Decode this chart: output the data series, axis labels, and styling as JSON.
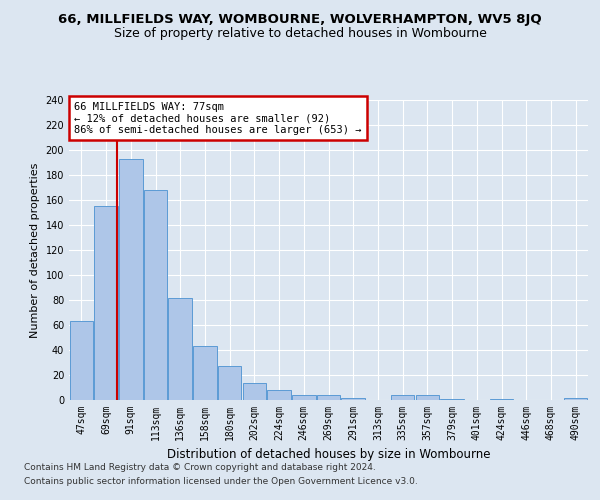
{
  "title_line1": "66, MILLFIELDS WAY, WOMBOURNE, WOLVERHAMPTON, WV5 8JQ",
  "title_line2": "Size of property relative to detached houses in Wombourne",
  "xlabel": "Distribution of detached houses by size in Wombourne",
  "ylabel": "Number of detached properties",
  "categories": [
    "47sqm",
    "69sqm",
    "91sqm",
    "113sqm",
    "136sqm",
    "158sqm",
    "180sqm",
    "202sqm",
    "224sqm",
    "246sqm",
    "269sqm",
    "291sqm",
    "313sqm",
    "335sqm",
    "357sqm",
    "379sqm",
    "401sqm",
    "424sqm",
    "446sqm",
    "468sqm",
    "490sqm"
  ],
  "values": [
    63,
    155,
    193,
    168,
    82,
    43,
    27,
    14,
    8,
    4,
    4,
    2,
    0,
    4,
    4,
    1,
    0,
    1,
    0,
    0,
    2
  ],
  "bar_color": "#aec6e8",
  "bar_edge_color": "#5b9bd5",
  "annotation_text": "66 MILLFIELDS WAY: 77sqm\n← 12% of detached houses are smaller (92)\n86% of semi-detached houses are larger (653) →",
  "annotation_box_color": "#ffffff",
  "annotation_box_edge": "#cc0000",
  "vline_color": "#cc0000",
  "vline_x_index": 1.45,
  "ylim": [
    0,
    240
  ],
  "yticks": [
    0,
    20,
    40,
    60,
    80,
    100,
    120,
    140,
    160,
    180,
    200,
    220,
    240
  ],
  "background_color": "#dce6f1",
  "plot_bg_color": "#dce6f1",
  "footer_line1": "Contains HM Land Registry data © Crown copyright and database right 2024.",
  "footer_line2": "Contains public sector information licensed under the Open Government Licence v3.0.",
  "title1_fontsize": 9.5,
  "title2_fontsize": 9,
  "xlabel_fontsize": 8.5,
  "ylabel_fontsize": 8,
  "tick_fontsize": 7,
  "footer_fontsize": 6.5,
  "annotation_fontsize": 7.5
}
